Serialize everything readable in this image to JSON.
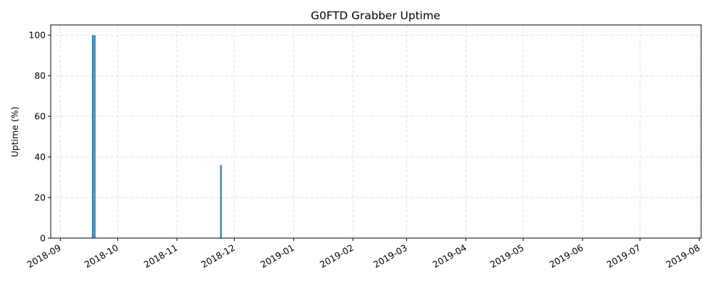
{
  "chart_data": {
    "type": "bar",
    "title": "G0FTD Grabber Uptime",
    "xlabel": "",
    "ylabel": "Uptime (%)",
    "x_type": "date",
    "xlim": [
      "2018-08-27",
      "2019-08-02"
    ],
    "ylim": [
      0,
      105
    ],
    "x_ticks": [
      "2018-09",
      "2018-10",
      "2018-11",
      "2018-12",
      "2019-01",
      "2019-02",
      "2019-03",
      "2019-04",
      "2019-05",
      "2019-06",
      "2019-07",
      "2019-08"
    ],
    "y_ticks": [
      0,
      20,
      40,
      60,
      80,
      100
    ],
    "grid": true,
    "legend": "none",
    "bar_color": "#1f77b4",
    "points": [
      {
        "date": "2018-09-18",
        "value": 100
      },
      {
        "date": "2018-09-19",
        "value": 100
      },
      {
        "date": "2018-11-24",
        "value": 36
      }
    ]
  }
}
